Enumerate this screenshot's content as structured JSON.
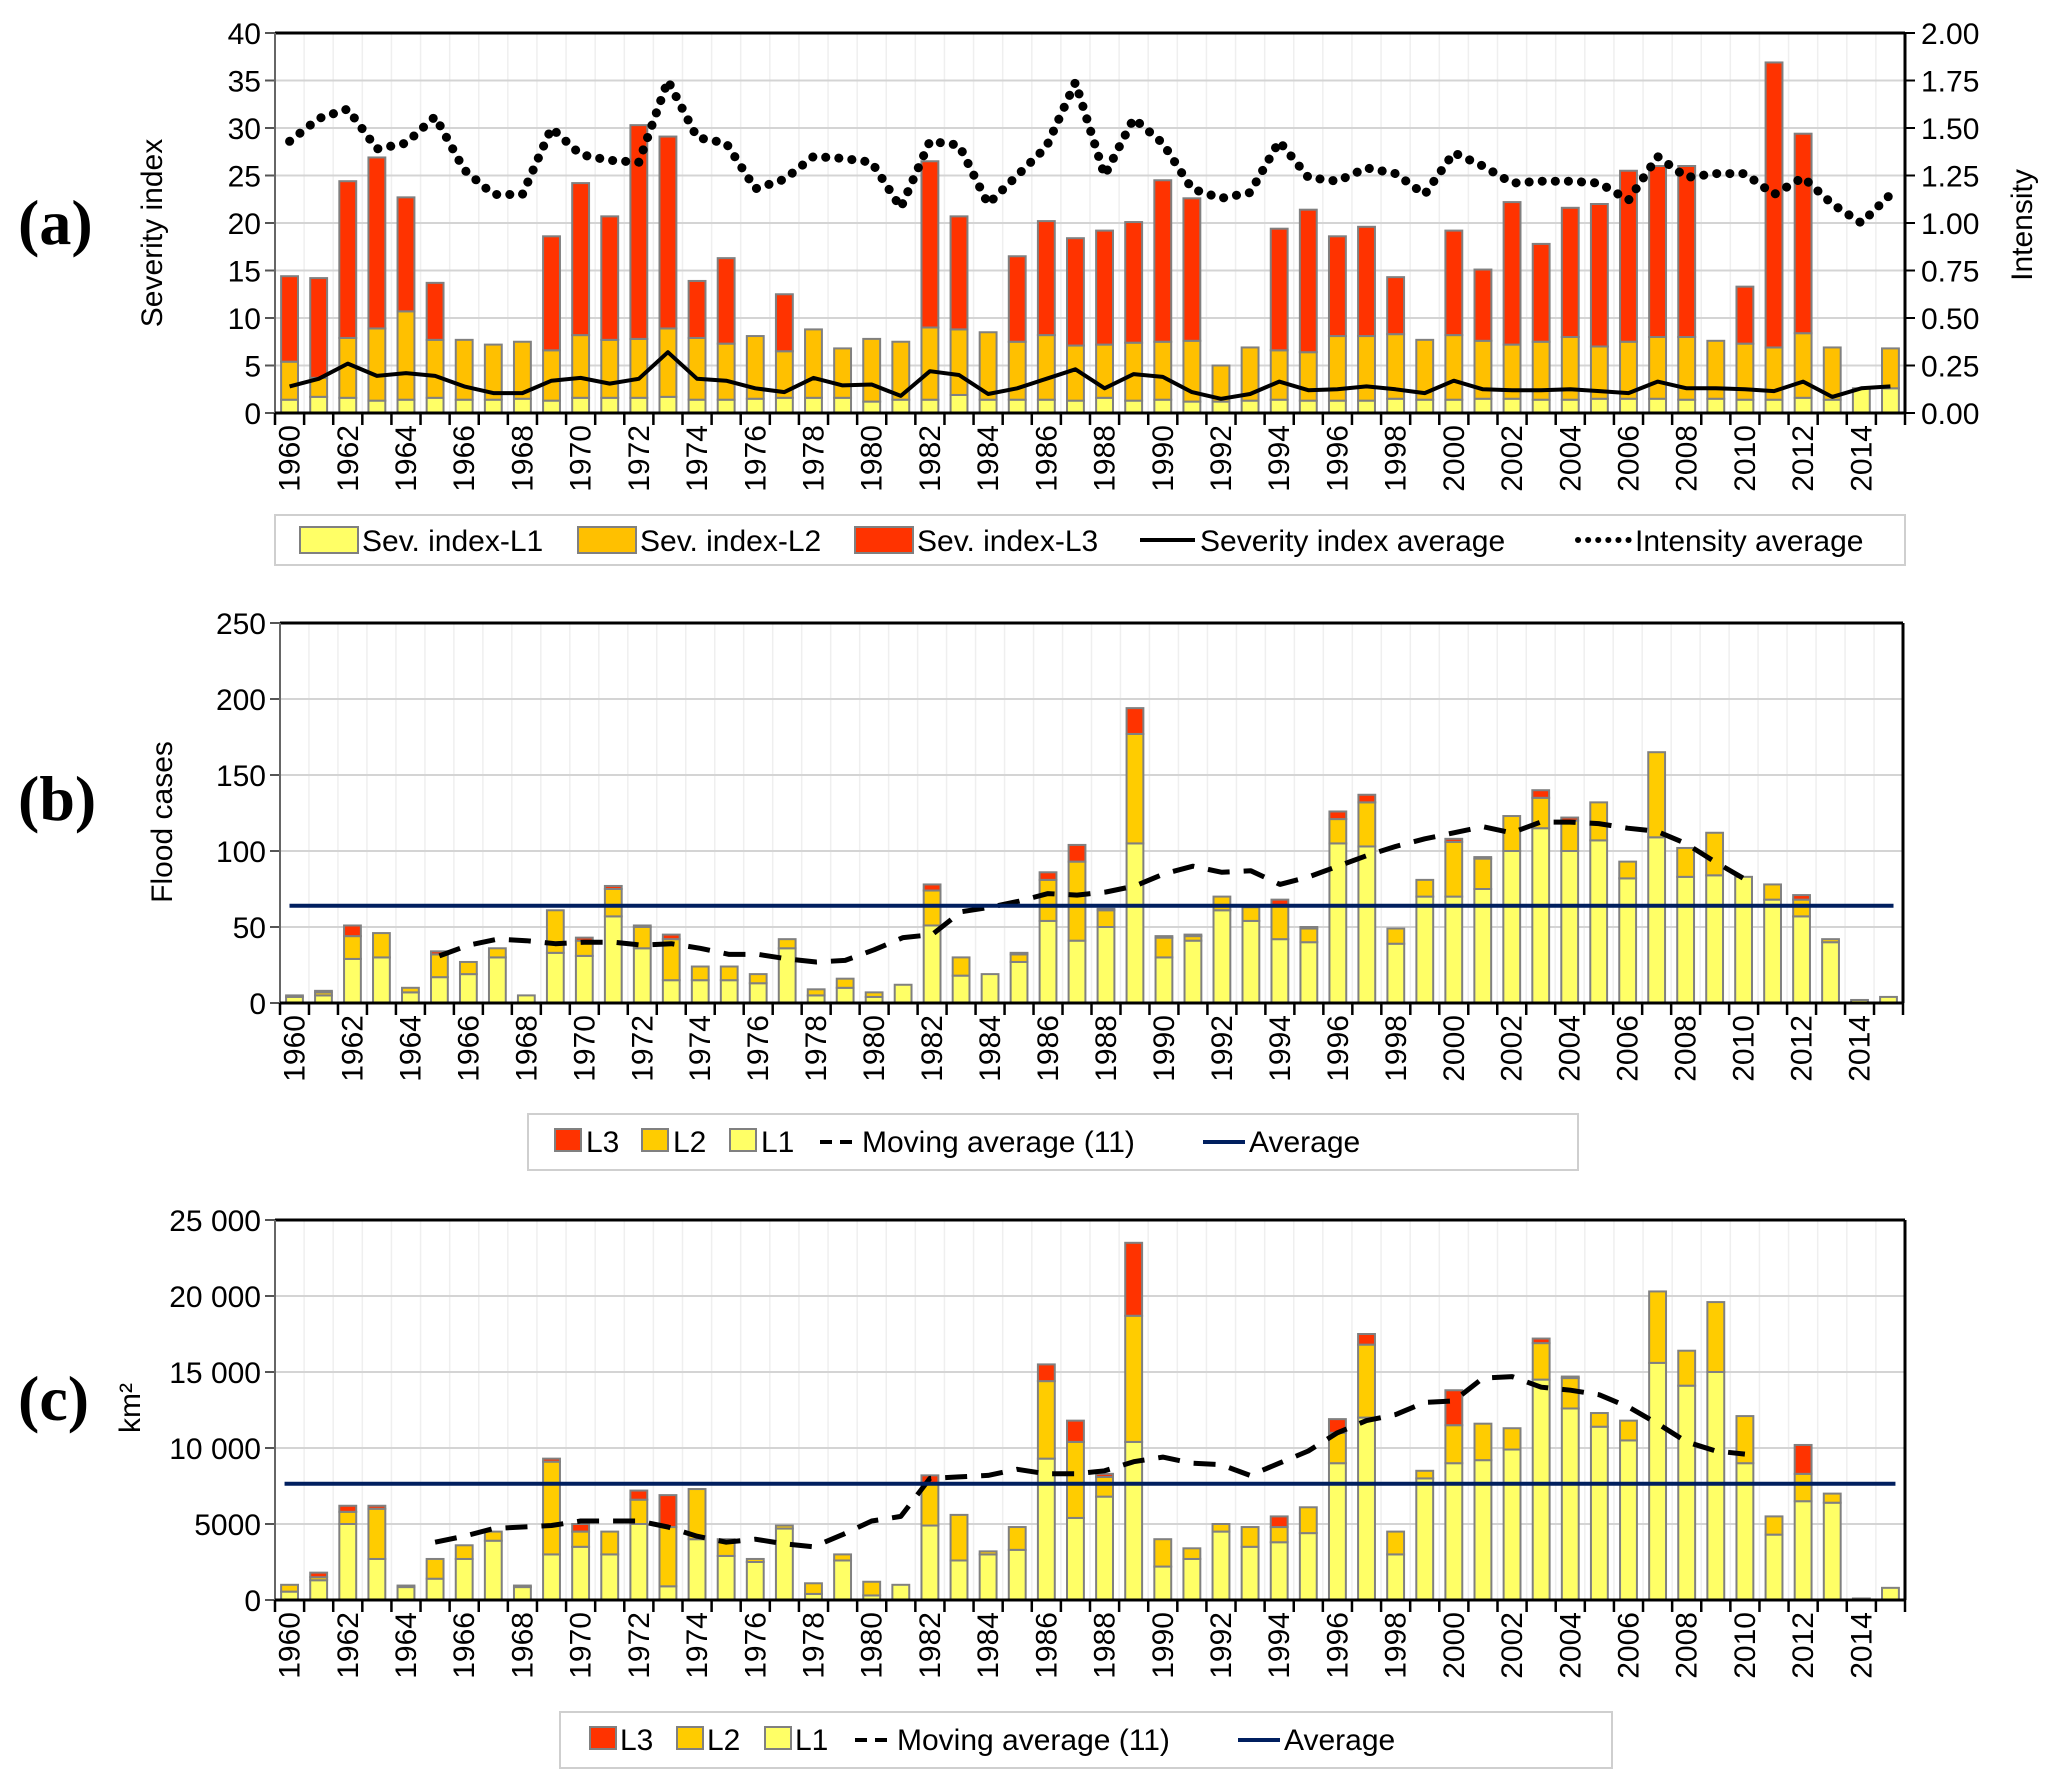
{
  "chart_data": [
    {
      "panel": "(a)",
      "type": "bar",
      "stacked": true,
      "years": [
        1960,
        1961,
        1962,
        1963,
        1964,
        1965,
        1966,
        1967,
        1968,
        1969,
        1970,
        1971,
        1972,
        1973,
        1974,
        1975,
        1976,
        1977,
        1978,
        1979,
        1980,
        1981,
        1982,
        1983,
        1984,
        1985,
        1986,
        1987,
        1988,
        1989,
        1990,
        1991,
        1992,
        1993,
        1994,
        1995,
        1996,
        1997,
        1998,
        1999,
        2000,
        2001,
        2002,
        2003,
        2004,
        2005,
        2006,
        2007,
        2008,
        2009,
        2010,
        2011,
        2012,
        2013,
        2014,
        2015
      ],
      "xtick_labels": [
        "1960",
        "1962",
        "1964",
        "1966",
        "1968",
        "1970",
        "1972",
        "1974",
        "1976",
        "1978",
        "1980",
        "1982",
        "1984",
        "1986",
        "1988",
        "1990",
        "1992",
        "1994",
        "1996",
        "1998",
        "2000",
        "2002",
        "2004",
        "2006",
        "2008",
        "2010",
        "2012",
        "2014"
      ],
      "ylabel": "Severity index",
      "ylim": [
        0,
        40
      ],
      "yticks": [
        "0",
        "5",
        "10",
        "15",
        "20",
        "25",
        "30",
        "35",
        "40"
      ],
      "y2label": "Intensity",
      "y2lim": [
        0,
        2
      ],
      "y2ticks": [
        "0.00",
        "0.25",
        "0.50",
        "0.75",
        "1.00",
        "1.25",
        "1.50",
        "1.75",
        "2.00"
      ],
      "series": [
        {
          "name": "Sev. index-L1",
          "color": "#ffff66",
          "values": [
            1.4,
            1.7,
            1.6,
            1.3,
            1.4,
            1.6,
            1.4,
            1.4,
            1.5,
            1.3,
            1.6,
            1.6,
            1.6,
            1.7,
            1.4,
            1.4,
            1.5,
            1.6,
            1.6,
            1.6,
            1.2,
            1.4,
            1.4,
            1.9,
            1.4,
            1.4,
            1.4,
            1.3,
            1.6,
            1.3,
            1.4,
            1.2,
            1.2,
            1.3,
            1.4,
            1.3,
            1.3,
            1.3,
            1.5,
            1.4,
            1.4,
            1.5,
            1.5,
            1.4,
            1.4,
            1.5,
            1.5,
            1.5,
            1.4,
            1.5,
            1.4,
            1.4,
            1.6,
            1.4,
            2.6,
            2.6
          ]
        },
        {
          "name": "Sev. index-L2",
          "color": "#ffc000",
          "values": [
            4.0,
            2.0,
            6.3,
            7.6,
            9.3,
            6.1,
            6.3,
            5.8,
            6.0,
            5.3,
            6.6,
            6.1,
            6.2,
            7.2,
            6.5,
            5.9,
            6.6,
            4.9,
            7.2,
            5.2,
            6.6,
            6.1,
            7.6,
            6.9,
            7.1,
            6.1,
            6.8,
            5.8,
            5.6,
            6.1,
            6.1,
            6.4,
            3.8,
            5.6,
            5.2,
            5.1,
            6.8,
            6.8,
            6.8,
            6.3,
            6.8,
            6.1,
            5.7,
            6.1,
            6.6,
            5.5,
            6.0,
            6.5,
            6.6,
            6.1,
            5.9,
            5.5,
            6.8,
            5.5,
            0,
            4.2
          ]
        },
        {
          "name": "Sev. index-L3",
          "color": "#ff3300",
          "values": [
            9.0,
            10.5,
            16.5,
            18.0,
            12.0,
            6.0,
            0,
            0,
            0,
            12.0,
            16.0,
            13.0,
            22.5,
            20.2,
            6.0,
            9.0,
            0,
            6.0,
            0,
            0,
            0,
            0,
            17.5,
            11.9,
            0,
            9.0,
            12.0,
            11.3,
            12.0,
            12.7,
            17.0,
            15.0,
            0,
            0,
            12.8,
            15.0,
            10.5,
            11.5,
            6.0,
            0,
            11.0,
            7.5,
            15.0,
            10.3,
            13.6,
            15.0,
            18.0,
            18.0,
            18.0,
            0,
            6.0,
            30.0,
            21.0,
            0,
            0,
            0
          ]
        },
        {
          "name": "Severity index average",
          "axis": "left",
          "style": "solid",
          "color": "#000000",
          "values": [
            2.8,
            3.6,
            5.2,
            3.9,
            4.2,
            3.9,
            2.8,
            2.1,
            2.1,
            3.4,
            3.7,
            3.1,
            3.6,
            6.4,
            3.6,
            3.4,
            2.6,
            2.2,
            3.7,
            2.9,
            3.0,
            1.8,
            4.4,
            4.0,
            2.0,
            2.6,
            3.6,
            4.6,
            2.6,
            4.1,
            3.8,
            2.2,
            1.5,
            2.0,
            3.3,
            2.4,
            2.5,
            2.8,
            2.5,
            2.1,
            3.4,
            2.5,
            2.4,
            2.4,
            2.5,
            2.3,
            2.1,
            3.3,
            2.6,
            2.6,
            2.5,
            2.3,
            3.3,
            1.7,
            2.6,
            2.8
          ]
        },
        {
          "name": "Intensity average",
          "axis": "right",
          "style": "dotted",
          "color": "#000000",
          "values": [
            1.43,
            1.55,
            1.6,
            1.39,
            1.42,
            1.56,
            1.28,
            1.15,
            1.15,
            1.5,
            1.36,
            1.33,
            1.32,
            1.75,
            1.45,
            1.42,
            1.18,
            1.23,
            1.35,
            1.34,
            1.32,
            1.08,
            1.43,
            1.41,
            1.1,
            1.25,
            1.4,
            1.74,
            1.25,
            1.55,
            1.42,
            1.18,
            1.13,
            1.16,
            1.43,
            1.24,
            1.22,
            1.29,
            1.26,
            1.15,
            1.37,
            1.3,
            1.21,
            1.22,
            1.22,
            1.21,
            1.12,
            1.35,
            1.24,
            1.26,
            1.26,
            1.15,
            1.24,
            1.1,
            1.0,
            1.15
          ]
        }
      ],
      "legend": [
        "Sev. index-L1",
        "Sev. index-L2",
        "Sev. index-L3",
        "Severity index average",
        "Intensity average"
      ],
      "legend_position": "bottom",
      "grid": true
    },
    {
      "panel": "(b)",
      "type": "bar",
      "stacked": true,
      "years": [
        1960,
        1961,
        1962,
        1963,
        1964,
        1965,
        1966,
        1967,
        1968,
        1969,
        1970,
        1971,
        1972,
        1973,
        1974,
        1975,
        1976,
        1977,
        1978,
        1979,
        1980,
        1981,
        1982,
        1983,
        1984,
        1985,
        1986,
        1987,
        1988,
        1989,
        1990,
        1991,
        1992,
        1993,
        1994,
        1995,
        1996,
        1997,
        1998,
        1999,
        2000,
        2001,
        2002,
        2003,
        2004,
        2005,
        2006,
        2007,
        2008,
        2009,
        2010,
        2011,
        2012,
        2013,
        2014,
        2015
      ],
      "xtick_labels": [
        "1960",
        "1962",
        "1964",
        "1966",
        "1968",
        "1970",
        "1972",
        "1974",
        "1976",
        "1978",
        "1980",
        "1982",
        "1984",
        "1986",
        "1988",
        "1990",
        "1992",
        "1994",
        "1996",
        "1998",
        "2000",
        "2002",
        "2004",
        "2006",
        "2008",
        "2010",
        "2012",
        "2014"
      ],
      "ylabel": "Flood cases",
      "ylim": [
        0,
        250
      ],
      "yticks": [
        "0",
        "50",
        "100",
        "150",
        "200",
        "250"
      ],
      "series": [
        {
          "name": "L1",
          "color": "#ffff66",
          "values": [
            4,
            5,
            29,
            30,
            7,
            17,
            19,
            30,
            5,
            33,
            31,
            57,
            36,
            15,
            15,
            15,
            13,
            36,
            5,
            10,
            4,
            12,
            51,
            18,
            19,
            27,
            54,
            41,
            50,
            105,
            30,
            41,
            61,
            54,
            42,
            40,
            105,
            103,
            39,
            70,
            70,
            75,
            100,
            115,
            100,
            107,
            82,
            109,
            83,
            84,
            83,
            68,
            57,
            40,
            2,
            4
          ]
        },
        {
          "name": "L2",
          "color": "#ffcc00",
          "values": [
            1,
            2,
            15,
            16,
            3,
            15,
            8,
            6,
            0,
            28,
            10,
            18,
            14,
            27,
            9,
            9,
            6,
            6,
            4,
            6,
            3,
            0,
            23,
            12,
            0,
            5,
            27,
            52,
            11,
            72,
            13,
            3,
            9,
            9,
            22,
            9,
            16,
            29,
            10,
            11,
            36,
            20,
            23,
            20,
            20,
            25,
            11,
            56,
            19,
            28,
            0,
            10,
            11,
            2,
            0,
            0
          ]
        },
        {
          "name": "L3",
          "color": "#ff3300",
          "values": [
            0,
            1,
            7,
            0,
            0,
            2,
            0,
            0,
            0,
            0,
            2,
            2,
            1,
            3,
            0,
            0,
            0,
            0,
            0,
            0,
            0,
            0,
            4,
            0,
            0,
            1,
            5,
            11,
            1,
            17,
            1,
            1,
            0,
            0,
            4,
            1,
            5,
            5,
            0,
            0,
            2,
            1,
            0,
            5,
            2,
            0,
            0,
            0,
            0,
            0,
            0,
            0,
            3,
            0,
            0,
            0
          ]
        },
        {
          "name": "Moving average (11)",
          "style": "dashed",
          "color": "#000000",
          "start_year": 1965,
          "end_year": 2010,
          "values": [
            31,
            38,
            42,
            41,
            39,
            40,
            40,
            38,
            39,
            36,
            32,
            32,
            29,
            27,
            28,
            35,
            43,
            45,
            60,
            63,
            67,
            72,
            71,
            73,
            77,
            85,
            90,
            86,
            87,
            78,
            83,
            90,
            97,
            103,
            108,
            112,
            116,
            112,
            119,
            119,
            118,
            115,
            113,
            105,
            93,
            82
          ]
        },
        {
          "name": "Average",
          "style": "solid",
          "color": "#001f5f",
          "value": 64
        }
      ],
      "legend": [
        "L3",
        "L2",
        "L1",
        "Moving average (11)",
        "Average"
      ],
      "legend_position": "bottom",
      "grid": true
    },
    {
      "panel": "(c)",
      "type": "bar",
      "stacked": true,
      "years": [
        1960,
        1961,
        1962,
        1963,
        1964,
        1965,
        1966,
        1967,
        1968,
        1969,
        1970,
        1971,
        1972,
        1973,
        1974,
        1975,
        1976,
        1977,
        1978,
        1979,
        1980,
        1981,
        1982,
        1983,
        1984,
        1985,
        1986,
        1987,
        1988,
        1989,
        1990,
        1991,
        1992,
        1993,
        1994,
        1995,
        1996,
        1997,
        1998,
        1999,
        2000,
        2001,
        2002,
        2003,
        2004,
        2005,
        2006,
        2007,
        2008,
        2009,
        2010,
        2011,
        2012,
        2013,
        2014,
        2015
      ],
      "xtick_labels": [
        "1960",
        "1962",
        "1964",
        "1966",
        "1968",
        "1970",
        "1972",
        "1974",
        "1976",
        "1978",
        "1980",
        "1982",
        "1984",
        "1986",
        "1988",
        "1990",
        "1992",
        "1994",
        "1996",
        "1998",
        "2000",
        "2002",
        "2004",
        "2006",
        "2008",
        "2010",
        "2012",
        "2014"
      ],
      "ylabel": "km²",
      "ylim": [
        0,
        25000
      ],
      "yticks": [
        "0",
        "5000",
        "10 000",
        "15 000",
        "20 000",
        "25 000"
      ],
      "series": [
        {
          "name": "L1",
          "color": "#ffff66",
          "values": [
            550,
            1300,
            5000,
            2700,
            850,
            1400,
            2700,
            3900,
            850,
            3000,
            3500,
            3000,
            5000,
            900,
            4000,
            2900,
            2500,
            4700,
            400,
            2600,
            300,
            1000,
            4900,
            2600,
            3000,
            3300,
            9300,
            5400,
            6800,
            10400,
            2200,
            2700,
            4500,
            3500,
            3800,
            4400,
            9000,
            12000,
            3000,
            8000,
            9000,
            9200,
            9900,
            14500,
            12600,
            11400,
            10500,
            15600,
            14100,
            15000,
            9000,
            4300,
            6500,
            6400,
            100,
            800
          ]
        },
        {
          "name": "L2",
          "color": "#ffcc00",
          "values": [
            450,
            200,
            800,
            3300,
            100,
            1300,
            900,
            600,
            100,
            6100,
            1000,
            1500,
            1600,
            3900,
            3300,
            1100,
            200,
            200,
            700,
            400,
            900,
            0,
            2700,
            3000,
            200,
            1500,
            5100,
            5000,
            1300,
            8300,
            1800,
            700,
            500,
            1300,
            1000,
            1700,
            2000,
            4800,
            1500,
            500,
            2500,
            2400,
            1400,
            2400,
            2000,
            900,
            1300,
            4700,
            2300,
            4600,
            3100,
            1200,
            1800,
            600,
            0,
            0
          ]
        },
        {
          "name": "L3",
          "color": "#ff3300",
          "values": [
            0,
            300,
            400,
            200,
            0,
            0,
            0,
            0,
            0,
            200,
            500,
            0,
            600,
            2100,
            0,
            0,
            0,
            0,
            0,
            0,
            0,
            0,
            600,
            0,
            0,
            0,
            1100,
            1400,
            200,
            4800,
            0,
            0,
            0,
            0,
            700,
            0,
            900,
            700,
            0,
            0,
            2300,
            0,
            0,
            300,
            100,
            0,
            0,
            0,
            0,
            0,
            0,
            0,
            1900,
            0,
            0,
            0
          ]
        },
        {
          "name": "Moving average (11)",
          "style": "dashed",
          "color": "#000000",
          "start_year": 1965,
          "end_year": 2010,
          "values": [
            3800,
            4200,
            4700,
            4800,
            4900,
            5200,
            5200,
            5200,
            4800,
            4200,
            3800,
            4000,
            3700,
            3500,
            4300,
            5200,
            5500,
            8000,
            8100,
            8200,
            8600,
            8300,
            8300,
            8500,
            9100,
            9400,
            9000,
            8900,
            8200,
            9000,
            9800,
            11000,
            11800,
            12200,
            13000,
            13100,
            14600,
            14700,
            14000,
            13800,
            13500,
            12700,
            11600,
            10400,
            9800,
            9600
          ]
        },
        {
          "name": "Average",
          "style": "solid",
          "color": "#001f5f",
          "value": 7650
        }
      ],
      "legend": [
        "L3",
        "L2",
        "L1",
        "Moving average (11)",
        "Average"
      ],
      "legend_position": "bottom",
      "grid": true
    }
  ]
}
